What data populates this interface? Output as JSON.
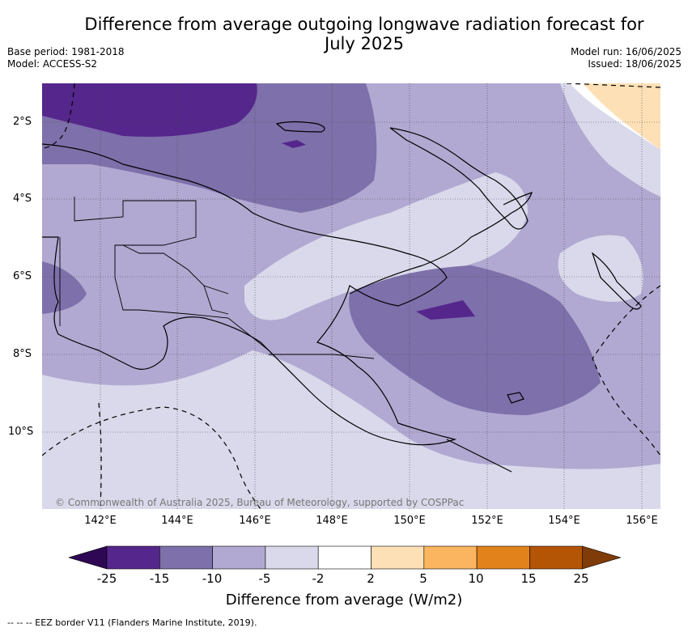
{
  "title": "Difference from average outgoing longwave radiation forecast for July 2025",
  "base_period": "Base period: 1981-2018",
  "model": "Model: ACCESS-S2",
  "model_run": "Model run: 16/06/2025",
  "issued": "Issued: 18/06/2025",
  "y_ticks": [
    "2°S",
    "4°S",
    "6°S",
    "8°S",
    "10°S"
  ],
  "x_ticks": [
    "142°E",
    "144°E",
    "146°E",
    "148°E",
    "150°E",
    "152°E",
    "154°E",
    "156°E"
  ],
  "copyright": "© Commonwealth of Australia 2025, Bureau of Meteorology, supported by COSPPac",
  "colorbar": {
    "ticks": [
      "-25",
      "-15",
      "-10",
      "-5",
      "-2",
      "2",
      "5",
      "10",
      "15",
      "25"
    ],
    "colors": [
      "#2e0854",
      "#55268c",
      "#7e70aa",
      "#b1a9d1",
      "#d9d9eb",
      "#ffffff",
      "#fde0b6",
      "#fbb560",
      "#e1821b",
      "#b45405",
      "#7f3b08"
    ],
    "label": "Difference from average (W/m2)"
  },
  "footnote": "--  --  -- EEZ border V11 (Flanders Marine Institute, 2019)."
}
